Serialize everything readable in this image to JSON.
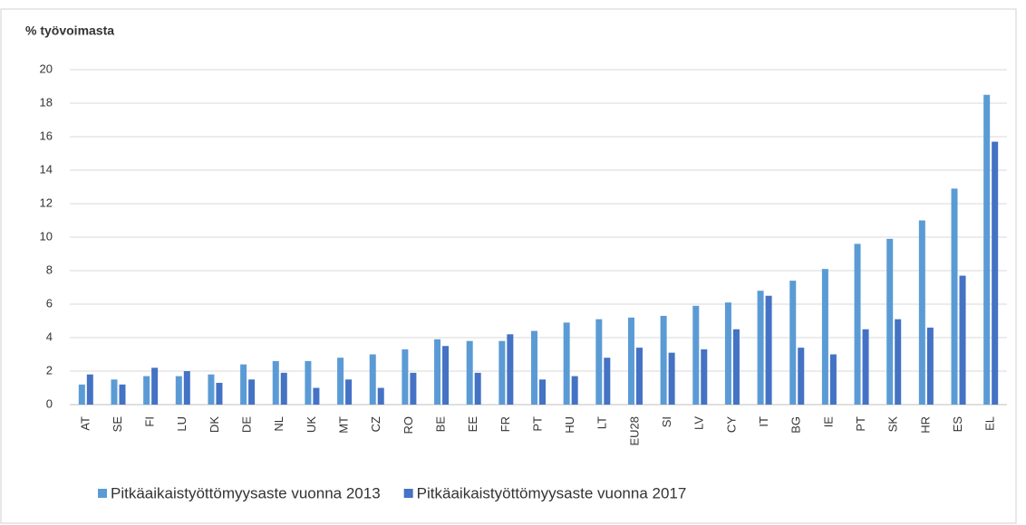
{
  "chart_data": {
    "type": "bar",
    "y_label": "% työvoimasta",
    "categories": [
      "AT",
      "SE",
      "FI",
      "LU",
      "DK",
      "DE",
      "NL",
      "UK",
      "MT",
      "CZ",
      "RO",
      "BE",
      "EE",
      "FR",
      "PT",
      "HU",
      "LT",
      "EU28",
      "SI",
      "LV",
      "CY",
      "IT",
      "BG",
      "IE",
      "PT",
      "SK",
      "HR",
      "ES",
      "EL"
    ],
    "series": [
      {
        "name": "Pitkäaikaistyöttömyysaste vuonna 2013",
        "color": "#5b9bd5",
        "values": [
          1.2,
          1.5,
          1.7,
          1.7,
          1.8,
          2.4,
          2.6,
          2.6,
          2.8,
          3.0,
          3.3,
          3.9,
          3.8,
          3.8,
          4.4,
          4.9,
          5.1,
          5.2,
          5.3,
          5.9,
          6.1,
          6.8,
          7.4,
          8.1,
          9.6,
          9.9,
          11.0,
          12.9,
          18.5
        ]
      },
      {
        "name": "Pitkäaikaistyöttömyysaste vuonna 2017",
        "color": "#4472c4",
        "values": [
          1.8,
          1.2,
          2.2,
          2.0,
          1.3,
          1.5,
          1.9,
          1.0,
          1.5,
          1.0,
          1.9,
          3.5,
          1.9,
          4.2,
          1.5,
          1.7,
          2.8,
          3.4,
          3.1,
          3.3,
          4.5,
          6.5,
          3.4,
          3.0,
          4.5,
          5.1,
          4.6,
          7.7,
          15.7
        ]
      }
    ],
    "ylim": [
      0,
      20
    ],
    "yticks": [
      0,
      2,
      4,
      6,
      8,
      10,
      12,
      14,
      16,
      18,
      20
    ],
    "grid": true,
    "legend": "bottom"
  }
}
